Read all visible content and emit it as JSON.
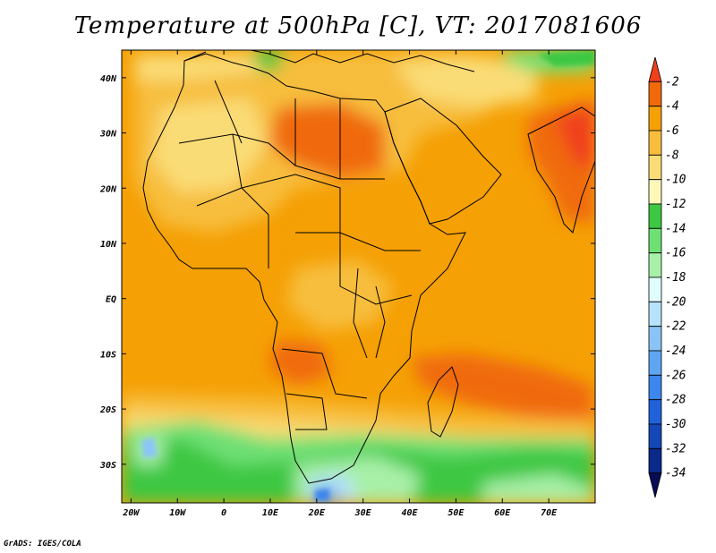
{
  "title": "Temperature at 500hPa [C], VT: 2017081606",
  "credit": "GrADS: IGES/COLA",
  "map": {
    "lon_range": [
      -22,
      80
    ],
    "lat_range": [
      -37,
      45
    ],
    "lon_ticks": [
      {
        "value": -20,
        "label": "20W"
      },
      {
        "value": -10,
        "label": "10W"
      },
      {
        "value": 0,
        "label": "0"
      },
      {
        "value": 10,
        "label": "10E"
      },
      {
        "value": 20,
        "label": "20E"
      },
      {
        "value": 30,
        "label": "30E"
      },
      {
        "value": 40,
        "label": "40E"
      },
      {
        "value": 50,
        "label": "50E"
      },
      {
        "value": 60,
        "label": "60E"
      },
      {
        "value": 70,
        "label": "70E"
      }
    ],
    "lat_ticks": [
      {
        "value": 40,
        "label": "40N"
      },
      {
        "value": 30,
        "label": "30N"
      },
      {
        "value": 20,
        "label": "20N"
      },
      {
        "value": 10,
        "label": "10N"
      },
      {
        "value": 0,
        "label": "EQ"
      },
      {
        "value": -10,
        "label": "10S"
      },
      {
        "value": -20,
        "label": "20S"
      },
      {
        "value": -30,
        "label": "30S"
      }
    ]
  },
  "colorbar": {
    "levels": [
      "-2",
      "-4",
      "-6",
      "-8",
      "-10",
      "-12",
      "-14",
      "-16",
      "-18",
      "-20",
      "-22",
      "-24",
      "-26",
      "-28",
      "-30",
      "-32",
      "-34"
    ],
    "colors": [
      "#f0401a",
      "#f06a0c",
      "#f5a005",
      "#f7be3e",
      "#fadc76",
      "#fdf7b8",
      "#3ec742",
      "#6ee074",
      "#a8f0a8",
      "#e0fcfb",
      "#b7e2fb",
      "#8ac4f7",
      "#5ea6f2",
      "#3c86ed",
      "#1f62da",
      "#1448b7",
      "#0a2a8a",
      "#080c55"
    ]
  }
}
